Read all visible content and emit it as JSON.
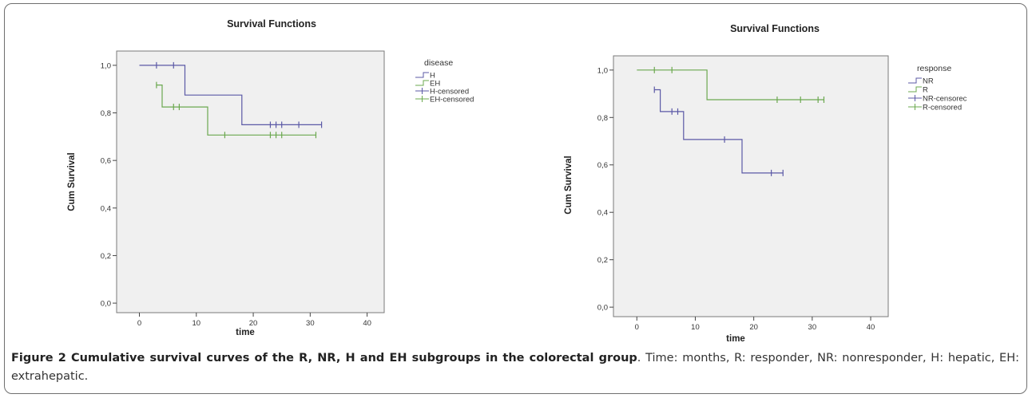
{
  "chart_data": [
    {
      "type": "line",
      "step": true,
      "title": "Survival Functions",
      "xlabel": "time",
      "ylabel": "Cum Survival",
      "xlim": [
        -4,
        43
      ],
      "ylim": [
        -0.04,
        1.06
      ],
      "xticks": [
        0,
        10,
        20,
        30,
        40
      ],
      "xtick_labels": [
        "0",
        "10",
        "20",
        "30",
        "40"
      ],
      "yticks": [
        0,
        0.2,
        0.4,
        0.6,
        0.8,
        1.0
      ],
      "ytick_labels": [
        "0,0",
        "0,2",
        "0,4",
        "0,6",
        "0,8",
        "1,0"
      ],
      "grid": false,
      "legend_title": "disease",
      "legend_position": "right",
      "legend_entries": [
        "H",
        "EH",
        "H-censored",
        "EH-censored"
      ],
      "series": [
        {
          "name": "H",
          "color": "#5b59a6",
          "steps": [
            [
              0,
              1.0
            ],
            [
              8,
              0.875
            ],
            [
              18,
              0.75
            ],
            [
              32,
              0.75
            ]
          ],
          "censored": [
            [
              3,
              1.0
            ],
            [
              6,
              1.0
            ],
            [
              23,
              0.75
            ],
            [
              24,
              0.75
            ],
            [
              25,
              0.75
            ],
            [
              28,
              0.75
            ],
            [
              32,
              0.75
            ]
          ]
        },
        {
          "name": "EH",
          "color": "#6ba84f",
          "steps": [
            [
              3,
              0.917
            ],
            [
              4,
              0.825
            ],
            [
              12,
              0.707
            ],
            [
              31,
              0.707
            ]
          ],
          "censored": [
            [
              3,
              0.917
            ],
            [
              6,
              0.825
            ],
            [
              7,
              0.825
            ],
            [
              15,
              0.707
            ],
            [
              23,
              0.707
            ],
            [
              24,
              0.707
            ],
            [
              25,
              0.707
            ],
            [
              31,
              0.707
            ]
          ]
        }
      ]
    },
    {
      "type": "line",
      "step": true,
      "title": "Survival Functions",
      "xlabel": "time",
      "ylabel": "Cum Survival",
      "xlim": [
        -4,
        43
      ],
      "ylim": [
        -0.04,
        1.06
      ],
      "xticks": [
        0,
        10,
        20,
        30,
        40
      ],
      "xtick_labels": [
        "0",
        "10",
        "20",
        "30",
        "40"
      ],
      "yticks": [
        0,
        0.2,
        0.4,
        0.6,
        0.8,
        1.0
      ],
      "ytick_labels": [
        "0,0",
        "0,2",
        "0,4",
        "0,6",
        "0,8",
        "1,0"
      ],
      "grid": false,
      "legend_title": "response",
      "legend_position": "right",
      "legend_entries": [
        "NR",
        "R",
        "NR-censorec",
        "R-censored"
      ],
      "series": [
        {
          "name": "NR",
          "color": "#5b59a6",
          "steps": [
            [
              3,
              0.917
            ],
            [
              4,
              0.825
            ],
            [
              8,
              0.707
            ],
            [
              18,
              0.566
            ],
            [
              25,
              0.566
            ]
          ],
          "censored": [
            [
              3,
              0.917
            ],
            [
              6,
              0.825
            ],
            [
              7,
              0.825
            ],
            [
              15,
              0.707
            ],
            [
              23,
              0.566
            ],
            [
              25,
              0.566
            ]
          ]
        },
        {
          "name": "R",
          "color": "#6ba84f",
          "steps": [
            [
              0,
              1.0
            ],
            [
              12,
              0.875
            ],
            [
              32,
              0.875
            ]
          ],
          "censored": [
            [
              3,
              1.0
            ],
            [
              6,
              1.0
            ],
            [
              24,
              0.875
            ],
            [
              28,
              0.875
            ],
            [
              31,
              0.875
            ],
            [
              32,
              0.875
            ]
          ]
        }
      ]
    }
  ],
  "figure": {
    "caption_label": "Figure 2",
    "caption_title": " Cumulative survival curves of the R, NR, H and EH subgroups in the colorectal group",
    "caption_text": ". Time: months, R: responder, NR: nonresponder, H: hepatic, EH: extrahepatic."
  },
  "colors": {
    "plot_background": "#f0f0f0",
    "border": "#6f6f6f",
    "series_h": "#5b59a6",
    "series_eh": "#6ba84f"
  }
}
